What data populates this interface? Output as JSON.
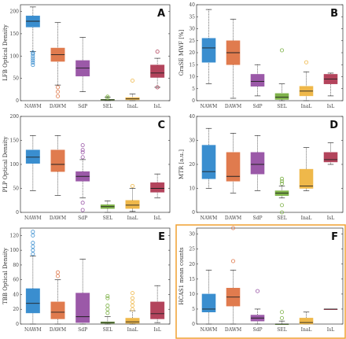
{
  "colors": {
    "NAWM": "#3a8ecf",
    "DAWM": "#e07b4e",
    "SdP": "#9b59a8",
    "SEL": "#7fb24a",
    "InaL": "#efb84a",
    "IsL": "#b3445c",
    "highlight": "#f0a030"
  },
  "chart_data": [
    {
      "type": "box",
      "panel": "A",
      "ylabel": "LFB Optical Density",
      "ylim": [
        0,
        215
      ],
      "yticks": [
        0,
        50,
        100,
        150,
        200
      ],
      "categories": [
        "NAWM",
        "DAWM",
        "SdP",
        "SEL",
        "InaL",
        "IsL"
      ],
      "boxes": [
        {
          "low": 110,
          "q1": 165,
          "median": 178,
          "q3": 190,
          "high": 210,
          "outliers": [
            80,
            85,
            90,
            95,
            100,
            105,
            108
          ]
        },
        {
          "low": 35,
          "q1": 88,
          "median": 103,
          "q3": 118,
          "high": 175,
          "outliers": [
            10,
            20,
            30
          ]
        },
        {
          "low": 20,
          "q1": 55,
          "median": 73,
          "q3": 90,
          "high": 142,
          "outliers": []
        },
        {
          "low": 0,
          "q1": 1,
          "median": 2,
          "q3": 3,
          "high": 8,
          "outliers": [
            6,
            9
          ]
        },
        {
          "low": 0,
          "q1": 2,
          "median": 4,
          "q3": 7,
          "high": 15,
          "outliers": [
            45
          ]
        },
        {
          "low": 30,
          "q1": 52,
          "median": 62,
          "q3": 80,
          "high": 95,
          "outliers": [
            30,
            110
          ]
        }
      ]
    },
    {
      "type": "box",
      "panel": "B",
      "ylabel": "GraSE MWF [%]",
      "ylim": [
        0,
        40
      ],
      "yticks": [
        0,
        5,
        10,
        15,
        20,
        25,
        30,
        35,
        40
      ],
      "categories": [
        "NAWM",
        "DAWM",
        "SdP",
        "SEL",
        "InaL",
        "IsL"
      ],
      "boxes": [
        {
          "low": 7,
          "q1": 16,
          "median": 22,
          "q3": 26,
          "high": 38,
          "outliers": []
        },
        {
          "low": 1,
          "q1": 15,
          "median": 20,
          "q3": 25,
          "high": 34,
          "outliers": []
        },
        {
          "low": 2,
          "q1": 6,
          "median": 8,
          "q3": 11,
          "high": 15,
          "outliers": []
        },
        {
          "low": 0,
          "q1": 0.5,
          "median": 1.5,
          "q3": 3,
          "high": 7,
          "outliers": [
            21
          ]
        },
        {
          "low": 0,
          "q1": 2,
          "median": 4,
          "q3": 6,
          "high": 12,
          "outliers": [
            16
          ]
        },
        {
          "low": 2,
          "q1": 7,
          "median": 9,
          "q3": 11,
          "high": 11.5,
          "outliers": []
        }
      ]
    },
    {
      "type": "box",
      "panel": "C",
      "ylabel": "PLP Optical Density",
      "ylim": [
        0,
        200
      ],
      "yticks": [
        0,
        50,
        100,
        150,
        200
      ],
      "categories": [
        "NAWM",
        "DAWM",
        "SdP",
        "SEL",
        "InaL",
        "IsL"
      ],
      "boxes": [
        {
          "low": 45,
          "q1": 102,
          "median": 115,
          "q3": 130,
          "high": 160,
          "outliers": []
        },
        {
          "low": 35,
          "q1": 85,
          "median": 100,
          "q3": 130,
          "high": 160,
          "outliers": []
        },
        {
          "low": 30,
          "q1": 65,
          "median": 75,
          "q3": 85,
          "high": 110,
          "outliers": [
            5,
            20,
            115,
            125,
            130,
            140
          ]
        },
        {
          "low": 0,
          "q1": 8,
          "median": 12,
          "q3": 16,
          "high": 24,
          "outliers": []
        },
        {
          "low": 2,
          "q1": 8,
          "median": 15,
          "q3": 25,
          "high": 50,
          "outliers": [
            55
          ]
        },
        {
          "low": 30,
          "q1": 42,
          "median": 50,
          "q3": 62,
          "high": 80,
          "outliers": []
        }
      ]
    },
    {
      "type": "box",
      "panel": "D",
      "ylabel": "MTR [a.u.]",
      "ylim": [
        0,
        40
      ],
      "yticks": [
        0,
        10,
        20,
        30,
        40
      ],
      "categories": [
        "NAWM",
        "DAWM",
        "SdP",
        "SEL",
        "InaL",
        "IsL"
      ],
      "boxes": [
        {
          "low": 10,
          "q1": 14,
          "median": 17,
          "q3": 28,
          "high": 35,
          "outliers": []
        },
        {
          "low": 8,
          "q1": 13,
          "median": 15,
          "q3": 25,
          "high": 33,
          "outliers": []
        },
        {
          "low": 9,
          "q1": 16,
          "median": 20,
          "q3": 25,
          "high": 32,
          "outliers": []
        },
        {
          "low": 6,
          "q1": 7,
          "median": 8,
          "q3": 9,
          "high": 11,
          "outliers": [
            0,
            3,
            12,
            13,
            14
          ]
        },
        {
          "low": 9,
          "q1": 10,
          "median": 11,
          "q3": 18,
          "high": 27,
          "outliers": []
        },
        {
          "low": 20,
          "q1": 21,
          "median": 22,
          "q3": 25,
          "high": 29,
          "outliers": []
        }
      ]
    },
    {
      "type": "box",
      "panel": "E",
      "ylabel": "TBB Optical Density",
      "ylim": [
        0,
        130
      ],
      "yticks": [
        0,
        20,
        40,
        60,
        80,
        100,
        120
      ],
      "categories": [
        "NAWM",
        "DAWM",
        "SdP",
        "SEL",
        "InaL",
        "IsL"
      ],
      "boxes": [
        {
          "low": 0,
          "q1": 15,
          "median": 28,
          "q3": 48,
          "high": 92,
          "outliers": [
            95,
            100,
            105,
            110,
            120,
            125
          ]
        },
        {
          "low": 0,
          "q1": 7,
          "median": 16,
          "q3": 30,
          "high": 60,
          "outliers": [
            65,
            70
          ]
        },
        {
          "low": 0,
          "q1": 2,
          "median": 10,
          "q3": 42,
          "high": 88,
          "outliers": []
        },
        {
          "low": 0,
          "q1": 1,
          "median": 2,
          "q3": 3,
          "high": 10,
          "outliers": [
            15,
            20,
            25,
            35,
            38
          ]
        },
        {
          "low": 0,
          "q1": 1,
          "median": 3,
          "q3": 8,
          "high": 18,
          "outliers": [
            20,
            25,
            30,
            35,
            42
          ]
        },
        {
          "low": 2,
          "q1": 7,
          "median": 14,
          "q3": 30,
          "high": 52,
          "outliers": []
        }
      ]
    },
    {
      "type": "box",
      "panel": "F",
      "highlighted": true,
      "ylabel": "HCAS1 mean counts",
      "ylim": [
        0,
        32
      ],
      "yticks": [
        0,
        5,
        10,
        15,
        20,
        25,
        30
      ],
      "categories": [
        "NAWM",
        "DAWM",
        "SdP",
        "SEL",
        "InaL",
        "IsL"
      ],
      "boxes": [
        {
          "low": 0,
          "q1": 4,
          "median": 5,
          "q3": 10,
          "high": 18,
          "outliers": []
        },
        {
          "low": 0,
          "q1": 6,
          "median": 9,
          "q3": 12,
          "high": 18,
          "outliers": [
            21,
            32
          ]
        },
        {
          "low": 0,
          "q1": 1,
          "median": 2,
          "q3": 3,
          "high": 5,
          "outliers": [
            11
          ]
        },
        {
          "low": 0,
          "q1": 0,
          "median": 0,
          "q3": 0,
          "high": 1,
          "outliers": [
            2,
            4
          ]
        },
        {
          "low": 0,
          "q1": 0,
          "median": 0.5,
          "q3": 2,
          "high": 4,
          "outliers": []
        },
        {
          "low": 5,
          "q1": 5,
          "median": 5,
          "q3": 5,
          "high": 5,
          "outliers": []
        }
      ]
    }
  ]
}
